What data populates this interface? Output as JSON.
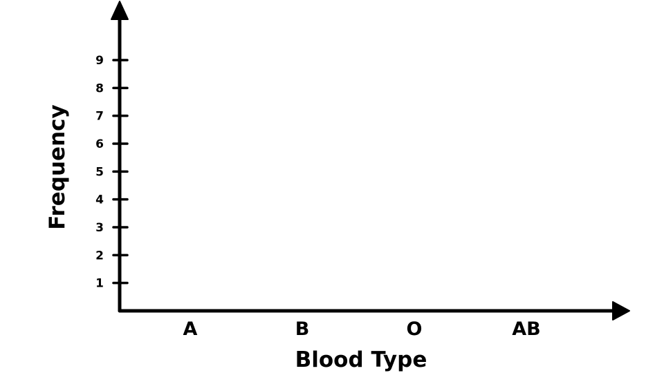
{
  "chart_data": {
    "type": "bar",
    "title": "",
    "xlabel": "Blood Type",
    "ylabel": "Frequency",
    "categories": [
      "A",
      "B",
      "O",
      "AB"
    ],
    "yticks": [
      "1",
      "2",
      "3",
      "4",
      "5",
      "6",
      "7",
      "8",
      "9"
    ],
    "ylim": [
      0,
      9
    ],
    "grid": false,
    "colors": {
      "ink": "#000000",
      "background": "#ffffff"
    }
  }
}
